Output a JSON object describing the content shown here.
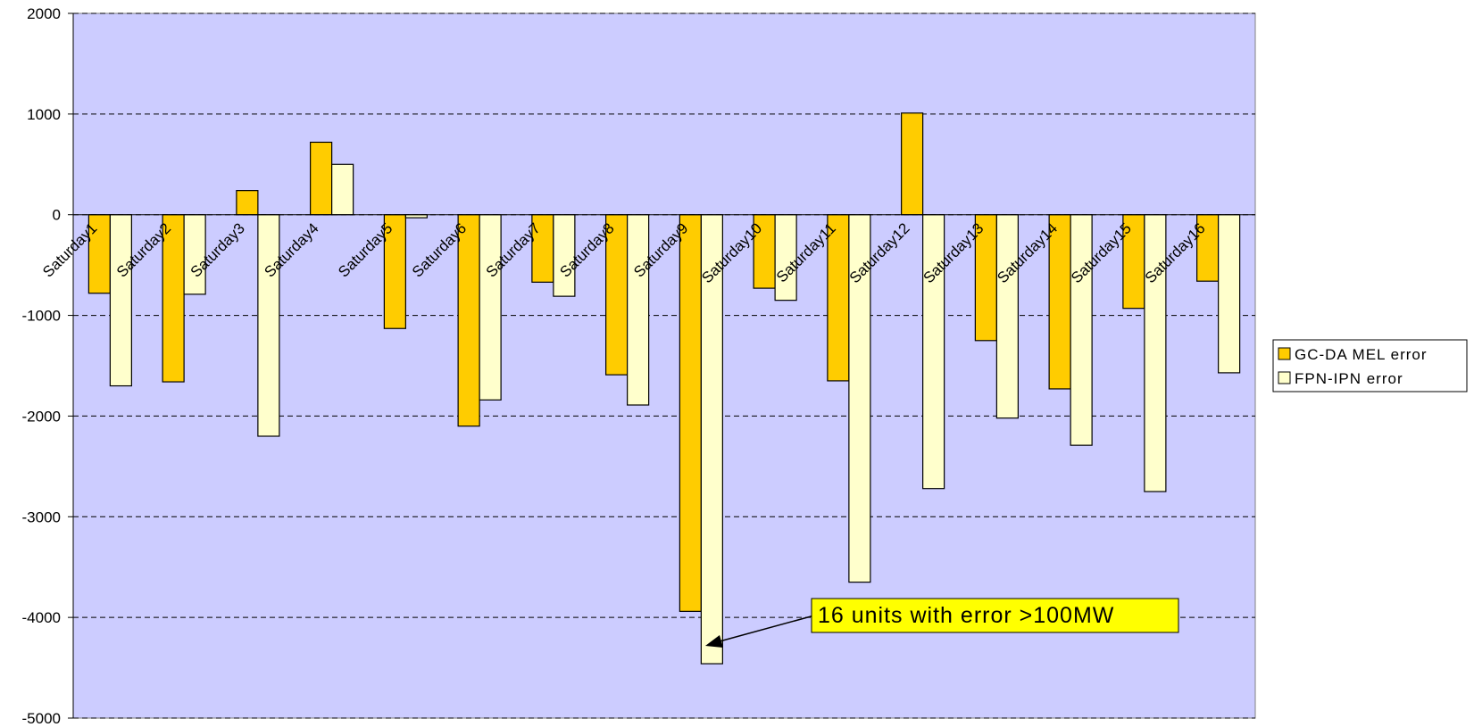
{
  "chart_data": {
    "type": "bar",
    "categories": [
      "Saturday1",
      "Saturday2",
      "Saturday3",
      "Saturday4",
      "Saturday5",
      "Saturday6",
      "Saturday7",
      "Saturday8",
      "Saturday9",
      "Saturday10",
      "Saturday11",
      "Saturday12",
      "Saturday13",
      "Saturday14",
      "Saturday15",
      "Saturday16"
    ],
    "series": [
      {
        "name": "GC-DA MEL error",
        "color": "#ffcc00",
        "values": [
          -780,
          -1660,
          240,
          720,
          -1130,
          -2100,
          -670,
          -1590,
          -3940,
          -730,
          -1650,
          1010,
          -1250,
          -1730,
          -930,
          -660
        ]
      },
      {
        "name": "FPN-IPN error",
        "color": "#ffffcc",
        "values": [
          -1700,
          -790,
          -2200,
          500,
          -30,
          -1840,
          -810,
          -1890,
          -4460,
          -850,
          -3650,
          -2720,
          -2020,
          -2290,
          -2750,
          -1570
        ]
      }
    ],
    "ylim": [
      -5000,
      2000
    ],
    "yticks": [
      -5000,
      -4000,
      -3000,
      -2000,
      -1000,
      0,
      1000,
      2000
    ],
    "grid": true,
    "legend": "right",
    "annotation": "16 units with error >100MW"
  }
}
